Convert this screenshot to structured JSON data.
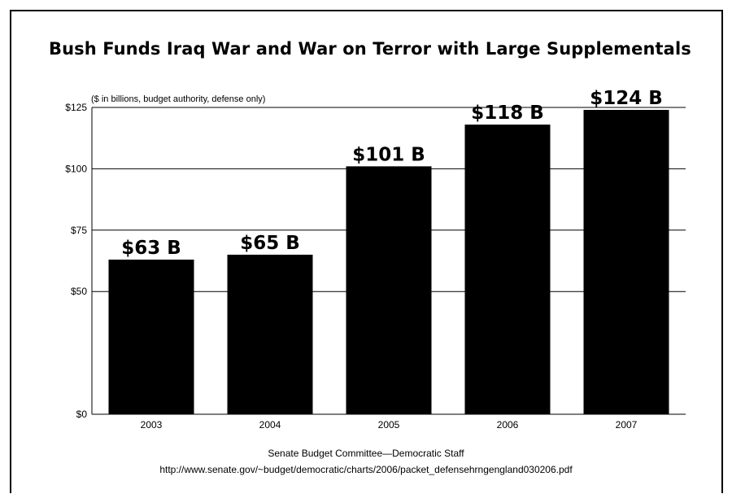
{
  "chart_data": {
    "type": "bar",
    "title": "Bush Funds Iraq War and War on Terror with Large Supplementals",
    "subtitle": "($ in billions, budget authority, defense only)",
    "categories": [
      "2003",
      "2004",
      "2005",
      "2006",
      "2007"
    ],
    "values": [
      63,
      65,
      101,
      118,
      124
    ],
    "data_labels": [
      "$63 B",
      "$65 B",
      "$101 B",
      "$118 B",
      "$124 B"
    ],
    "ylim": [
      0,
      125
    ],
    "y_ticks": [
      0,
      50,
      75,
      100,
      125
    ],
    "y_tick_labels": [
      "$0",
      "$50",
      "$75",
      "$100",
      "$125"
    ],
    "grid": true,
    "bar_color": "#000000"
  },
  "source": {
    "line1": "Senate Budget Committee—Democratic Staff",
    "line2": "http://www.senate.gov/~budget/democratic/charts/2006/packet_defensehrngengland030206.pdf"
  }
}
